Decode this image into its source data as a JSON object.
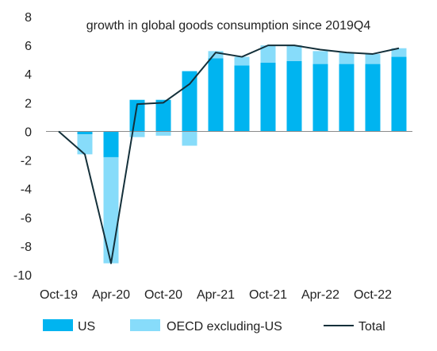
{
  "chart_data": {
    "type": "bar",
    "stacked": true,
    "title": "growth in global goods consumption since 2019Q4",
    "xlabel": "",
    "ylabel": "",
    "ylim": [
      -10,
      8
    ],
    "yticks": [
      8,
      6,
      4,
      2,
      0,
      -2,
      -4,
      -6,
      -8,
      -10
    ],
    "xtick_labels": [
      "Oct-19",
      "Apr-20",
      "Oct-20",
      "Apr-21",
      "Oct-21",
      "Apr-22",
      "Oct-22"
    ],
    "xtick_index": [
      0,
      2,
      4,
      6,
      8,
      10,
      12
    ],
    "categories": [
      "Oct-19",
      "Jan-20",
      "Apr-20",
      "Jul-20",
      "Oct-20",
      "Jan-21",
      "Apr-21",
      "Jul-21",
      "Oct-21",
      "Jan-22",
      "Apr-22",
      "Jul-22",
      "Oct-22",
      "Jan-23"
    ],
    "series": [
      {
        "name": "US",
        "kind": "bar",
        "color": "#00B4F0",
        "values": [
          0,
          -0.2,
          -1.8,
          2.2,
          2.2,
          4.2,
          5.1,
          4.6,
          4.8,
          4.9,
          4.7,
          4.7,
          4.7,
          5.2
        ]
      },
      {
        "name": "OECD excluding-US",
        "kind": "bar",
        "color": "#87DCFA",
        "values": [
          0,
          -1.4,
          -7.4,
          -0.4,
          -0.3,
          -1.0,
          0.5,
          0.6,
          1.2,
          1.1,
          0.9,
          0.8,
          0.7,
          0.6
        ]
      },
      {
        "name": "Total",
        "kind": "line",
        "color": "#14303A",
        "values": [
          0,
          -1.6,
          -9.2,
          1.9,
          2.0,
          3.3,
          5.5,
          5.2,
          6.0,
          6.0,
          5.7,
          5.5,
          5.4,
          5.8
        ]
      }
    ],
    "legend": {
      "position": "bottom"
    },
    "grid": false
  }
}
